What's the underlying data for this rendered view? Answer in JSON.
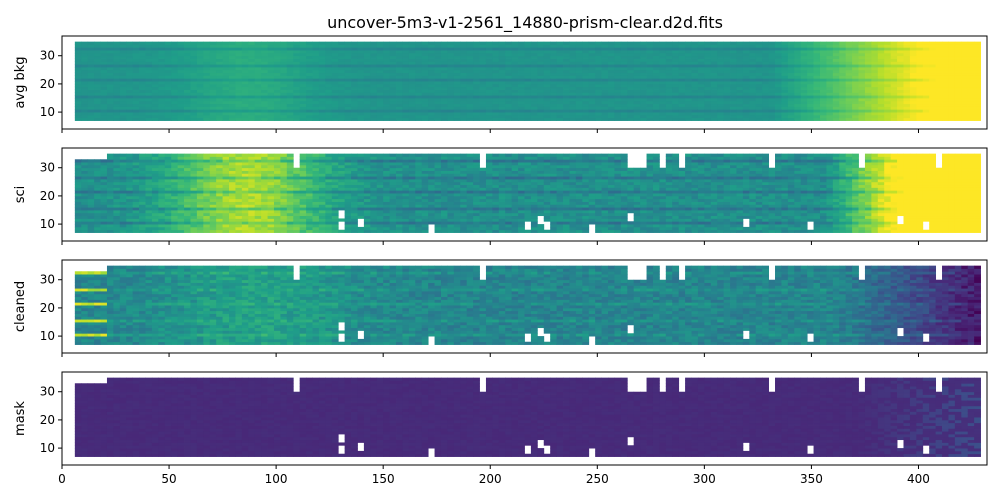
{
  "chart_data": {
    "type": "heatmap",
    "title": "uncover-5m3-v1-2561_14880-prism-clear.d2d.fits",
    "colormap": "viridis",
    "x": {
      "ticks": [
        0,
        50,
        100,
        150,
        200,
        250,
        300,
        350,
        400
      ],
      "range": [
        0,
        432
      ]
    },
    "y_ticks": [
      10,
      20,
      30
    ],
    "y_range": [
      4,
      37
    ],
    "panels": [
      {
        "name": "avg bkg",
        "ylabel": "avg bkg"
      },
      {
        "name": "sci",
        "ylabel": "sci"
      },
      {
        "name": "cleaned",
        "ylabel": "cleaned"
      },
      {
        "name": "mask",
        "ylabel": "mask"
      }
    ],
    "data_extent": {
      "x": [
        6,
        428
      ],
      "y": [
        7,
        35
      ]
    },
    "masked_columns_x": [
      108,
      195,
      263,
      266,
      271,
      278,
      289,
      329,
      373,
      408
    ]
  }
}
